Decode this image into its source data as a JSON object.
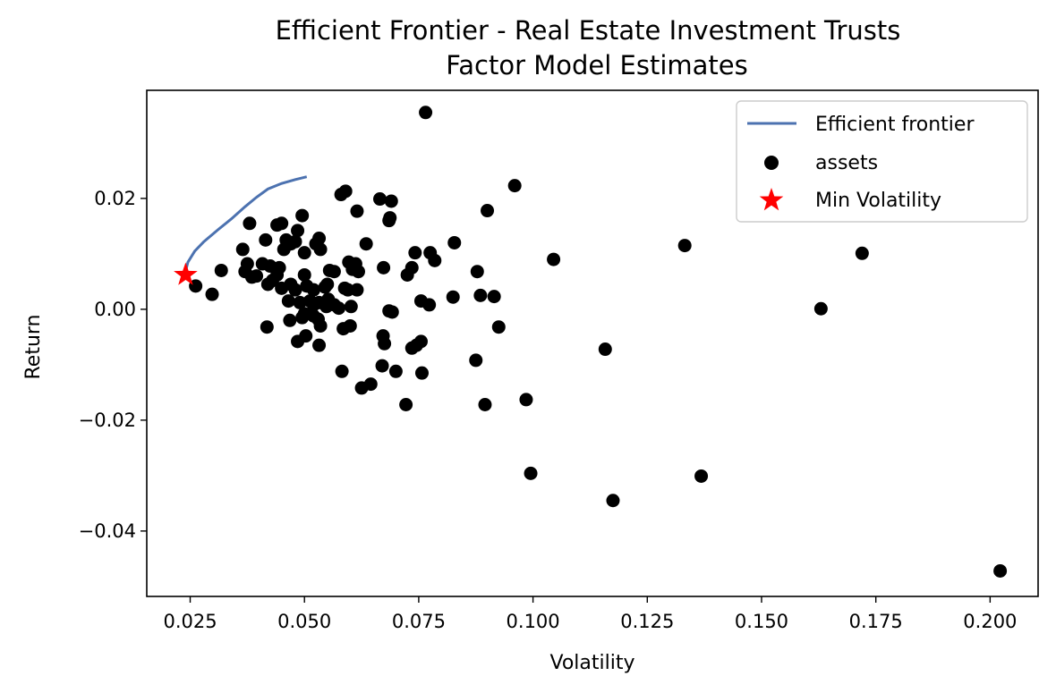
{
  "chart_data": {
    "type": "scatter",
    "title": "Efficient Frontier - Real Estate Investment Trusts",
    "subtitle": "Factor Model Estimates",
    "xlabel": "Volatility",
    "ylabel": "Return",
    "xlim": [
      0.0155,
      0.2105
    ],
    "ylim": [
      -0.0518,
      0.0395
    ],
    "xticks": [
      0.025,
      0.05,
      0.075,
      0.1,
      0.125,
      0.15,
      0.175,
      0.2
    ],
    "xtick_labels": [
      "0.025",
      "0.050",
      "0.075",
      "0.100",
      "0.125",
      "0.150",
      "0.175",
      "0.200"
    ],
    "yticks": [
      -0.04,
      -0.02,
      0.0,
      0.02
    ],
    "ytick_labels": [
      "−0.04",
      "−0.02",
      "0.00",
      "0.02"
    ],
    "grid": false,
    "legend_position": "top-right",
    "colors": {
      "frontier": "#4c72b0",
      "assets": "#000000",
      "min_vol": "#ff0000"
    },
    "series": [
      {
        "name": "Efficient frontier",
        "kind": "line",
        "x": [
          0.0238,
          0.0245,
          0.026,
          0.028,
          0.031,
          0.034,
          0.037,
          0.0395,
          0.042,
          0.045,
          0.048,
          0.0505
        ],
        "y": [
          0.0062,
          0.0085,
          0.0105,
          0.0122,
          0.0143,
          0.0163,
          0.0185,
          0.0202,
          0.0217,
          0.0227,
          0.0234,
          0.0239
        ]
      },
      {
        "name": "assets",
        "kind": "scatter",
        "x": [
          0.0765,
          0.059,
          0.058,
          0.0665,
          0.069,
          0.0615,
          0.096,
          0.09,
          0.0687,
          0.0685,
          0.0495,
          0.038,
          0.044,
          0.045,
          0.0485,
          0.0415,
          0.0535,
          0.046,
          0.047,
          0.048,
          0.0455,
          0.0365,
          0.05,
          0.0525,
          0.0635,
          0.0375,
          0.037,
          0.0408,
          0.0425,
          0.0445,
          0.05,
          0.0532,
          0.0555,
          0.0565,
          0.0597,
          0.0612,
          0.0605,
          0.0618,
          0.0673,
          0.0735,
          0.0742,
          0.0775,
          0.0785,
          0.0828,
          0.0878,
          0.0725,
          0.1045,
          0.1332,
          0.172,
          0.163,
          0.0395,
          0.0385,
          0.044,
          0.043,
          0.042,
          0.045,
          0.047,
          0.048,
          0.0505,
          0.052,
          0.0545,
          0.055,
          0.0588,
          0.0615,
          0.0318,
          0.0262,
          0.0298,
          0.0465,
          0.049,
          0.0512,
          0.052,
          0.0532,
          0.0548,
          0.0552,
          0.0565,
          0.0575,
          0.0595,
          0.0602,
          0.0692,
          0.0685,
          0.0755,
          0.0773,
          0.0825,
          0.0885,
          0.0915,
          0.0925,
          0.0418,
          0.0468,
          0.0495,
          0.05,
          0.052,
          0.053,
          0.0535,
          0.0585,
          0.06,
          0.0672,
          0.0675,
          0.0755,
          0.0735,
          0.0745,
          0.0485,
          0.0503,
          0.0532,
          0.0582,
          0.067,
          0.07,
          0.0757,
          0.0625,
          0.0645,
          0.0722,
          0.0875,
          0.0895,
          0.0985,
          0.1158,
          0.0995,
          0.1175,
          0.1368,
          0.2022
        ],
        "y": [
          0.0355,
          0.0213,
          0.0207,
          0.0199,
          0.0195,
          0.0177,
          0.0223,
          0.0178,
          0.0165,
          0.016,
          0.0169,
          0.0155,
          0.0152,
          0.0155,
          0.0142,
          0.0125,
          0.0108,
          0.0125,
          0.0118,
          0.0122,
          0.0108,
          0.0108,
          0.0102,
          0.0118,
          0.0118,
          0.0082,
          0.0068,
          0.0082,
          0.0078,
          0.0075,
          0.0062,
          0.0128,
          0.007,
          0.0068,
          0.0085,
          0.0082,
          0.0072,
          0.0068,
          0.0075,
          0.0075,
          0.0102,
          0.0102,
          0.0088,
          0.012,
          0.0068,
          0.0062,
          0.009,
          0.0115,
          0.0101,
          0.0001,
          0.006,
          0.0058,
          0.0062,
          0.0052,
          0.0045,
          0.0038,
          0.0045,
          0.0035,
          0.0042,
          0.0035,
          0.004,
          0.0045,
          0.0038,
          0.0035,
          0.007,
          0.0042,
          0.0027,
          0.0015,
          0.0012,
          0.0015,
          0.0008,
          0.0012,
          0.0005,
          0.0018,
          0.0008,
          0.0002,
          0.0035,
          0.0005,
          -0.0005,
          -0.0003,
          0.0015,
          0.0008,
          0.0022,
          0.0025,
          0.0023,
          -0.0032,
          -0.0032,
          -0.002,
          -0.0015,
          -0.0008,
          -0.0012,
          -0.0018,
          -0.003,
          -0.0035,
          -0.003,
          -0.0048,
          -0.0062,
          -0.0058,
          -0.007,
          -0.0065,
          -0.0058,
          -0.0048,
          -0.0065,
          -0.0112,
          -0.0102,
          -0.0112,
          -0.0115,
          -0.0142,
          -0.0135,
          -0.0172,
          -0.0092,
          -0.0172,
          -0.0163,
          -0.0072,
          -0.0296,
          -0.0345,
          -0.0301,
          -0.0472
        ]
      },
      {
        "name": "Min Volatility",
        "kind": "marker",
        "x": [
          0.024
        ],
        "y": [
          0.0062
        ]
      }
    ]
  }
}
